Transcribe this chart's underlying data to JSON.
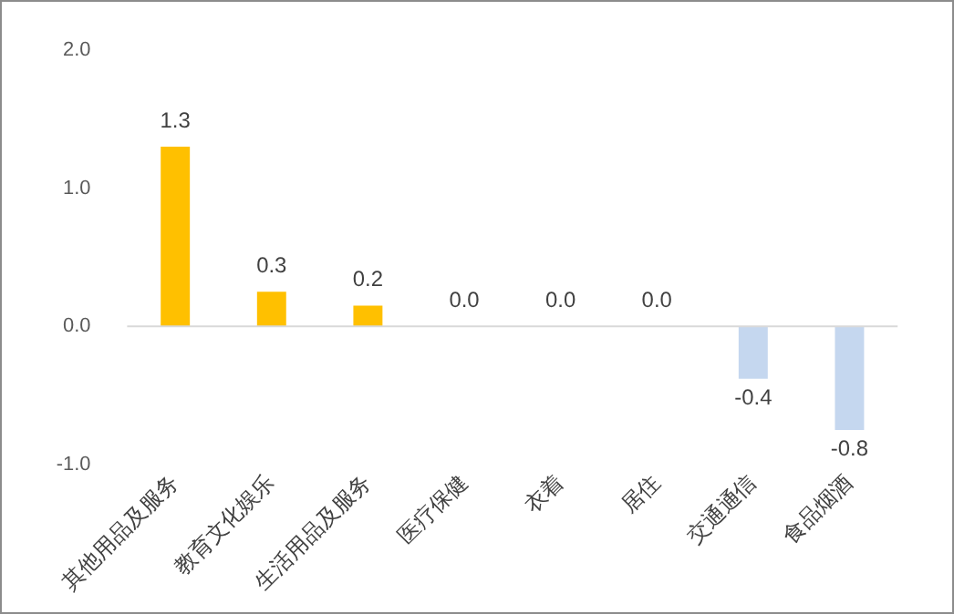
{
  "chart_data": {
    "type": "bar",
    "categories": [
      "其他用品及服务",
      "教育文化娱乐",
      "生活用品及服务",
      "医疗保健",
      "衣着",
      "居住",
      "交通通信",
      "食品烟酒"
    ],
    "values": [
      1.3,
      0.25,
      0.15,
      0,
      0,
      0,
      -0.38,
      -0.75
    ],
    "value_labels": [
      "1.3",
      "0.3",
      "0.2",
      "0.0",
      "0.0",
      "0.0",
      "-0.4",
      "-0.8"
    ],
    "colors": [
      "#ffc000",
      "#ffc000",
      "#ffc000",
      "#ffc000",
      "#ffc000",
      "#ffc000",
      "#c5d7ef",
      "#c5d7ef"
    ],
    "ylim": [
      -1,
      2
    ],
    "yticks": [
      {
        "value": -1,
        "label": "-1.0"
      },
      {
        "value": 0,
        "label": "0.0"
      },
      {
        "value": 1,
        "label": "1.0"
      },
      {
        "value": 2,
        "label": "2.0"
      }
    ],
    "ref_lines": [
      {
        "axis": "y",
        "value": 0,
        "color": "#d9d9d9"
      }
    ],
    "grid": false,
    "legend": false
  }
}
